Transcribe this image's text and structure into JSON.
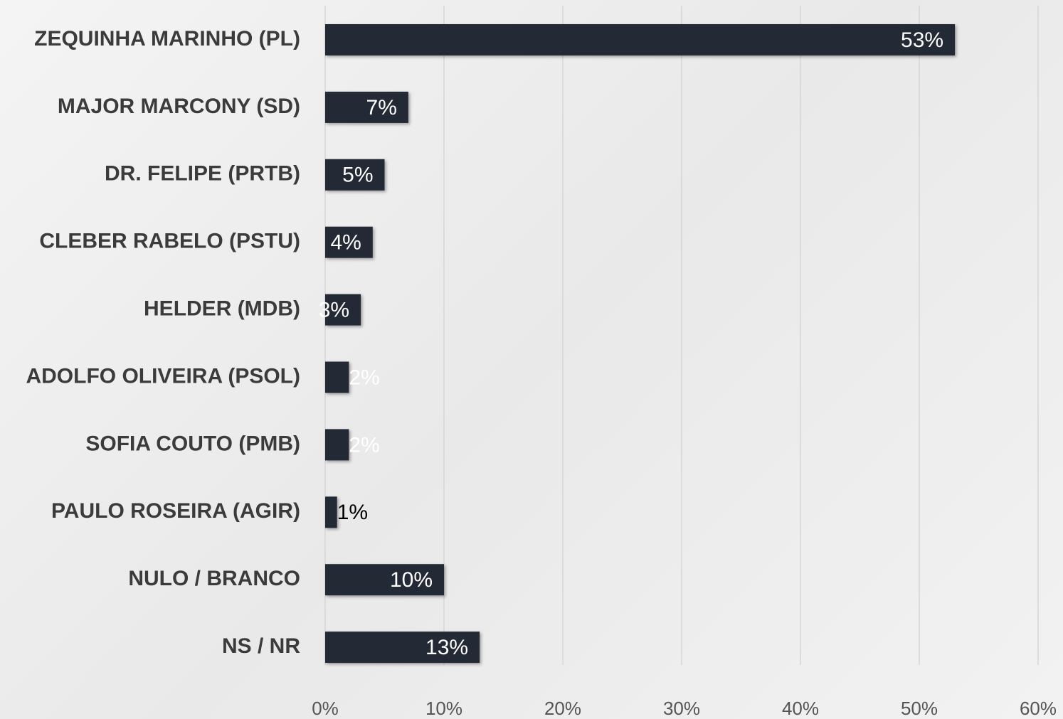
{
  "chart_data": {
    "type": "bar",
    "orientation": "horizontal",
    "categories": [
      "ZEQUINHA MARINHO (PL)",
      "MAJOR MARCONY (SD)",
      "DR. FELIPE (PRTB)",
      "CLEBER RABELO (PSTU)",
      "HELDER (MDB)",
      "ADOLFO OLIVEIRA (PSOL)",
      "SOFIA COUTO (PMB)",
      "PAULO ROSEIRA (AGIR)",
      "NULO / BRANCO",
      "NS / NR"
    ],
    "values": [
      53,
      7,
      5,
      4,
      3,
      2,
      2,
      1,
      10,
      13
    ],
    "value_labels": [
      "53%",
      "7%",
      "5%",
      "4%",
      "3%",
      "2%",
      "2%",
      "1%",
      "10%",
      "13%"
    ],
    "color": "#232a36",
    "xlim": [
      0,
      60
    ],
    "xticks": [
      {
        "value": 0,
        "label": "0%"
      },
      {
        "value": 10,
        "label": "10%"
      },
      {
        "value": 20,
        "label": "20%"
      },
      {
        "value": 30,
        "label": "30%"
      },
      {
        "value": 40,
        "label": "40%"
      },
      {
        "value": 50,
        "label": "50%"
      },
      {
        "value": 60,
        "label": "60%"
      }
    ],
    "grid": true
  }
}
